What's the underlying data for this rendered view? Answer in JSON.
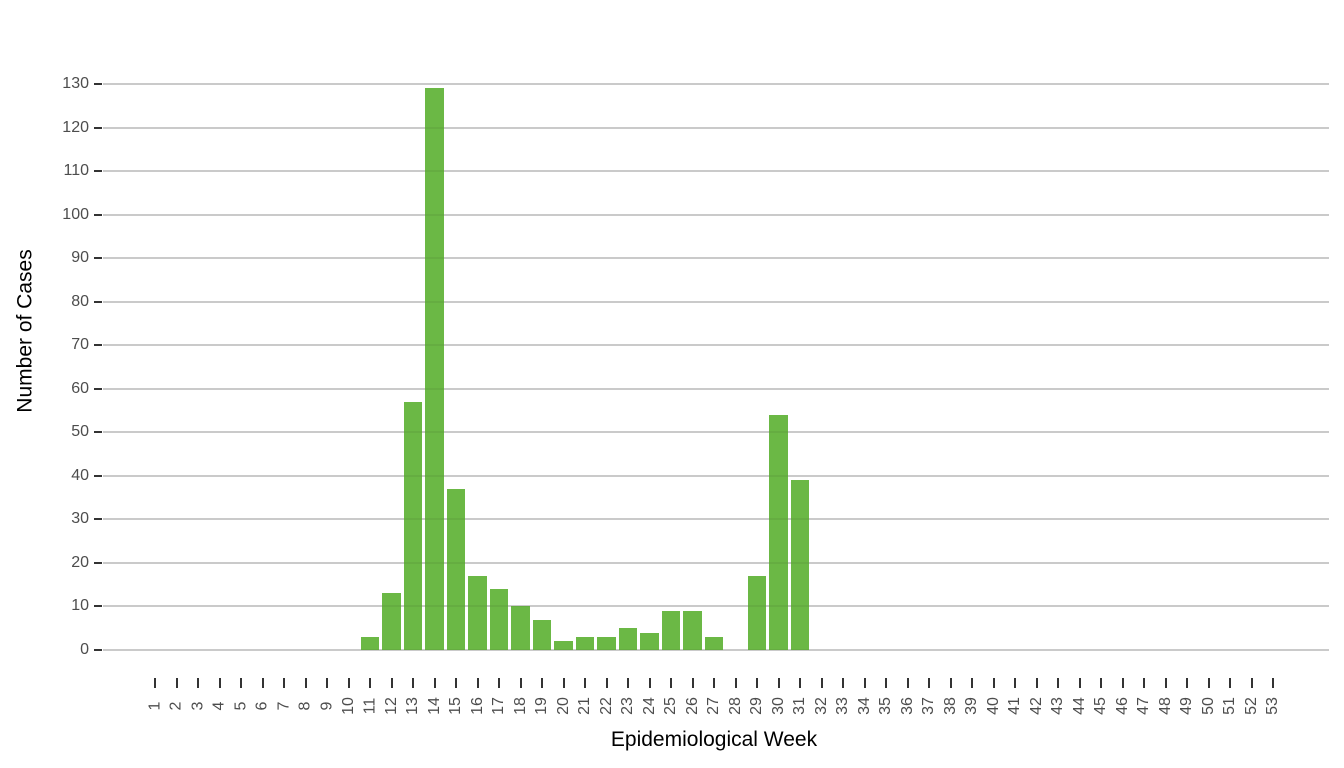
{
  "chart_data": {
    "type": "bar",
    "title": "",
    "xlabel": "Epidemiological Week",
    "ylabel": "Number of Cases",
    "categories": [
      1,
      2,
      3,
      4,
      5,
      6,
      7,
      8,
      9,
      10,
      11,
      12,
      13,
      14,
      15,
      16,
      17,
      18,
      19,
      20,
      21,
      22,
      23,
      24,
      25,
      26,
      27,
      28,
      29,
      30,
      31,
      32,
      33,
      34,
      35,
      36,
      37,
      38,
      39,
      40,
      41,
      42,
      43,
      44,
      45,
      46,
      47,
      48,
      49,
      50,
      51,
      52,
      53
    ],
    "values": [
      0,
      0,
      0,
      0,
      0,
      0,
      0,
      0,
      0,
      0,
      3,
      13,
      57,
      129,
      37,
      17,
      14,
      10,
      7,
      2,
      3,
      3,
      5,
      4,
      9,
      9,
      3,
      0,
      17,
      54,
      39,
      0,
      0,
      0,
      0,
      0,
      0,
      0,
      0,
      0,
      0,
      0,
      0,
      0,
      0,
      0,
      0,
      0,
      0,
      0,
      0,
      0,
      0
    ],
    "yticks": [
      0,
      10,
      20,
      30,
      40,
      50,
      60,
      70,
      80,
      90,
      100,
      110,
      120,
      130
    ],
    "ylim": [
      0,
      130
    ],
    "grid": "horizontal-major-only",
    "legend": "none",
    "bar_color": "#6bb845",
    "gridline_color": "#d6d6d6",
    "tick_color": "#333333",
    "axis_text_color": "#4d4d4d",
    "axis_title_color": "#000000",
    "background_color": "#ffffff"
  }
}
